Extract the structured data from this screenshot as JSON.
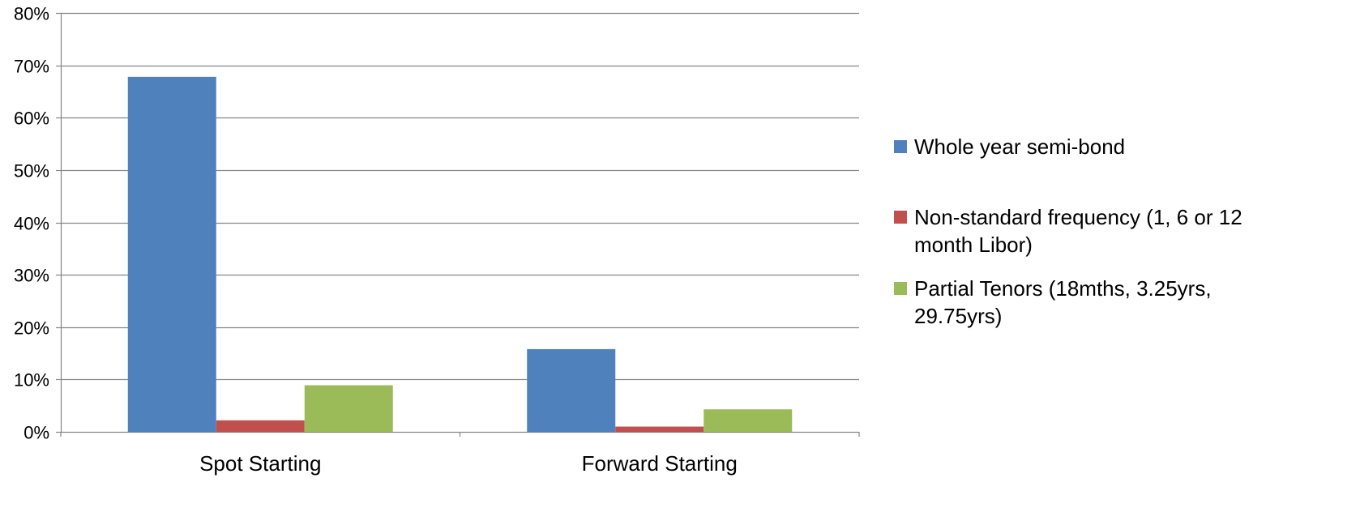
{
  "chart_data": {
    "type": "bar",
    "title": "",
    "xlabel": "",
    "ylabel": "",
    "categories": [
      "Spot Starting",
      "Forward Starting"
    ],
    "series": [
      {
        "name": "Whole year semi-bond",
        "legend_lines": [
          "Whole year semi-bond"
        ],
        "color": "#4f81bd",
        "values": [
          67.8,
          15.8
        ]
      },
      {
        "name": "Non-standard frequency (1, 6 or 12 month Libor)",
        "legend_lines": [
          "Non-standard frequency (1, 6 or 12",
          "month Libor)"
        ],
        "color": "#c0504d",
        "values": [
          2.2,
          1.0
        ]
      },
      {
        "name": "Partial Tenors (18mths, 3.25yrs, 29.75yrs)",
        "legend_lines": [
          "Partial Tenors (18mths, 3.25yrs,",
          "29.75yrs)"
        ],
        "color": "#9bbb59",
        "values": [
          8.9,
          4.3
        ]
      }
    ],
    "ylim": [
      0,
      80
    ],
    "yticks": [
      0,
      10,
      20,
      30,
      40,
      50,
      60,
      70,
      80
    ],
    "ytick_labels": [
      "0%",
      "10%",
      "20%",
      "30%",
      "40%",
      "50%",
      "60%",
      "70%",
      "80%"
    ],
    "grid": true,
    "legend_position": "right"
  }
}
